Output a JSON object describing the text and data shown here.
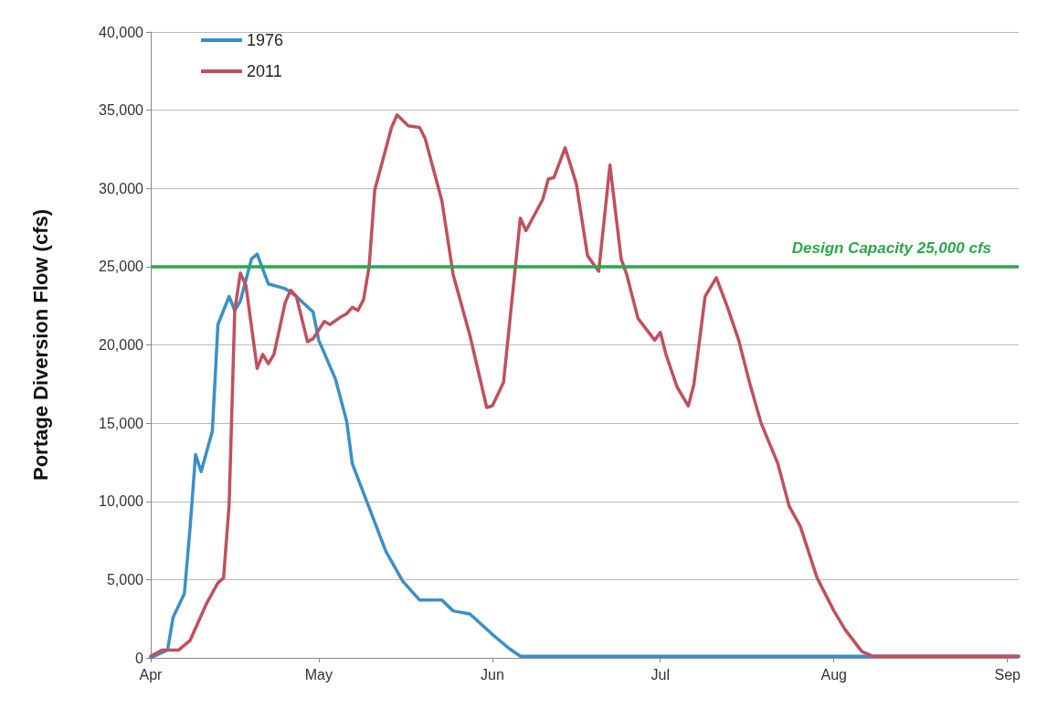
{
  "chart_data": {
    "type": "line",
    "ylabel": "Portage Diversion Flow (cfs)",
    "xlim": [
      "--04-01",
      "--09-03"
    ],
    "xticks": [
      {
        "value": "--04-01",
        "label": "Apr"
      },
      {
        "value": "--05-01",
        "label": "May"
      },
      {
        "value": "--06-01",
        "label": "Jun"
      },
      {
        "value": "--07-01",
        "label": "Jul"
      },
      {
        "value": "--08-01",
        "label": "Aug"
      },
      {
        "value": "--09-01",
        "label": "Sep"
      }
    ],
    "ylim": [
      0,
      40000
    ],
    "yticks": [
      {
        "value": 0,
        "label": "0"
      },
      {
        "value": 5000,
        "label": "5,000"
      },
      {
        "value": 10000,
        "label": "10,000"
      },
      {
        "value": 15000,
        "label": "15,000"
      },
      {
        "value": 20000,
        "label": "20,000"
      },
      {
        "value": 25000,
        "label": "25,000"
      },
      {
        "value": 30000,
        "label": "30,000"
      },
      {
        "value": 35000,
        "label": "35,000"
      },
      {
        "value": 40000,
        "label": "40,000"
      }
    ],
    "grid": "y",
    "legend": "top left",
    "marker": "none",
    "line_style": "solid",
    "series": [
      {
        "name": "1976",
        "color": "#3a8fc8",
        "x": [
          "--04-01",
          "--04-04",
          "--04-05",
          "--04-07",
          "--04-08",
          "--04-09",
          "--04-10",
          "--04-12",
          "--04-13",
          "--04-15",
          "--04-16",
          "--04-17",
          "--04-19",
          "--04-20",
          "--04-22",
          "--04-25",
          "--04-27",
          "--04-30",
          "--05-01",
          "--05-04",
          "--05-06",
          "--05-07",
          "--05-10",
          "--05-13",
          "--05-16",
          "--05-19",
          "--05-23",
          "--05-25",
          "--05-28",
          "--06-01",
          "--06-04",
          "--06-06",
          "--09-03"
        ],
        "values": [
          0,
          500,
          2600,
          4100,
          8200,
          13000,
          11900,
          14500,
          21300,
          23100,
          22200,
          22800,
          25500,
          25800,
          23900,
          23600,
          23100,
          22100,
          20300,
          17800,
          15100,
          12400,
          9600,
          6800,
          4900,
          3700,
          3700,
          3000,
          2800,
          1500,
          600,
          100,
          100
        ]
      },
      {
        "name": "2011",
        "color": "#c0505e",
        "x": [
          "--04-01",
          "--04-03",
          "--04-06",
          "--04-08",
          "--04-11",
          "--04-13",
          "--04-14",
          "--04-15",
          "--04-16",
          "--04-17",
          "--04-18",
          "--04-20",
          "--04-21",
          "--04-22",
          "--04-23",
          "--04-25",
          "--04-26",
          "--04-27",
          "--04-29",
          "--04-30",
          "--05-02",
          "--05-03",
          "--05-05",
          "--05-06",
          "--05-07",
          "--05-08",
          "--05-09",
          "--05-10",
          "--05-11",
          "--05-14",
          "--05-15",
          "--05-17",
          "--05-19",
          "--05-20",
          "--05-23",
          "--05-25",
          "--05-28",
          "--05-31",
          "--06-01",
          "--06-03",
          "--06-06",
          "--06-07",
          "--06-10",
          "--06-11",
          "--06-12",
          "--06-14",
          "--06-16",
          "--06-18",
          "--06-20",
          "--06-22",
          "--06-24",
          "--06-25",
          "--06-27",
          "--06-30",
          "--07-01",
          "--07-02",
          "--07-04",
          "--07-06",
          "--07-07",
          "--07-09",
          "--07-11",
          "--07-13",
          "--07-15",
          "--07-17",
          "--07-19",
          "--07-22",
          "--07-24",
          "--07-26",
          "--07-29",
          "--08-01",
          "--08-03",
          "--08-06",
          "--08-08",
          "--09-03"
        ],
        "values": [
          100,
          500,
          500,
          1100,
          3500,
          4800,
          5100,
          9800,
          22200,
          24600,
          23800,
          18500,
          19400,
          18800,
          19400,
          22700,
          23500,
          23100,
          20200,
          20400,
          21500,
          21300,
          21800,
          22000,
          22400,
          22200,
          22900,
          25000,
          29900,
          33900,
          34700,
          34000,
          33900,
          33200,
          29200,
          24500,
          20600,
          16000,
          16100,
          17600,
          28100,
          27300,
          29300,
          30600,
          30700,
          32600,
          30300,
          25700,
          24700,
          31500,
          25500,
          24500,
          21700,
          20300,
          20800,
          19400,
          17300,
          16100,
          17500,
          23100,
          24300,
          22400,
          20300,
          17500,
          15000,
          12400,
          9700,
          8400,
          5100,
          3000,
          1800,
          400,
          100,
          100
        ]
      }
    ],
    "ref_lines": [
      {
        "axis": "y",
        "value": 25000,
        "label": "Design Capacity 25,000 cfs",
        "color": "#2aa84a"
      }
    ]
  }
}
